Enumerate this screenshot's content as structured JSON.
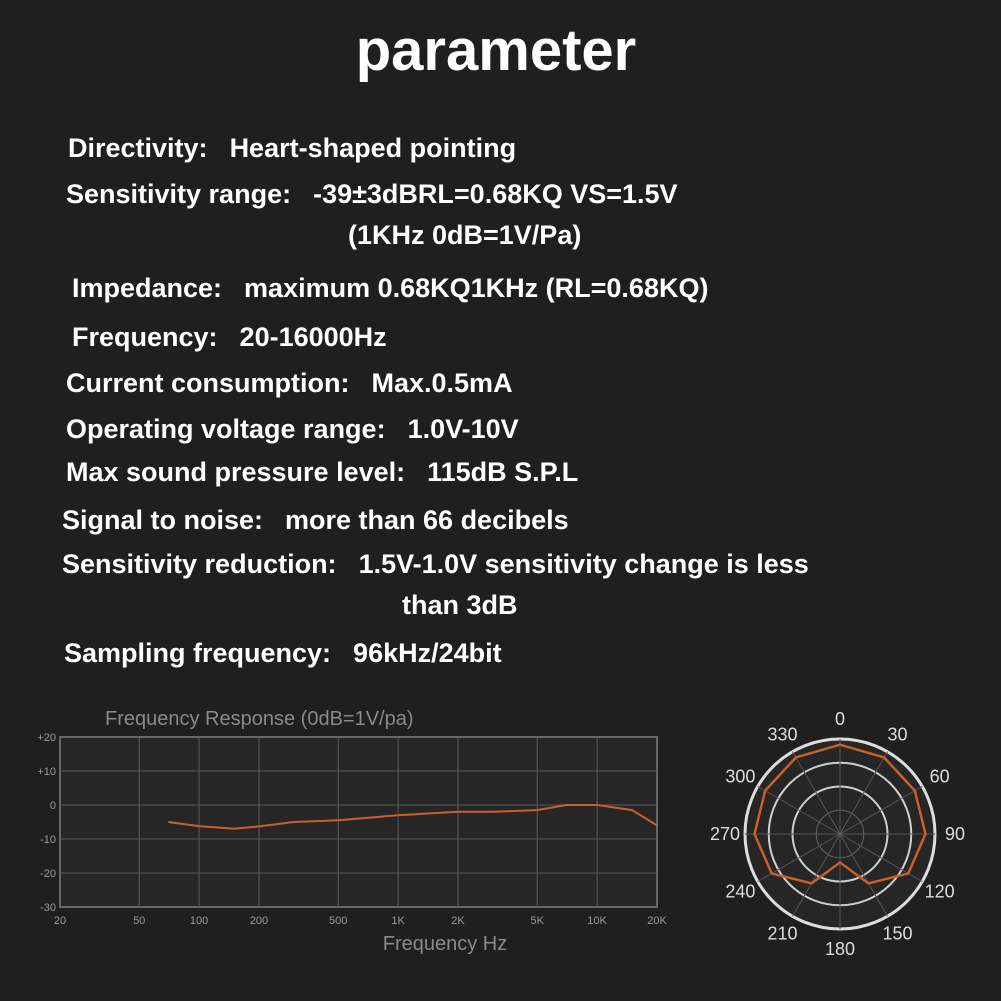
{
  "header": {
    "title": "parameter"
  },
  "specs": [
    {
      "label": "Directivity:",
      "lines": [
        "Heart-shaped pointing"
      ]
    },
    {
      "label": "Sensitivity range:",
      "lines": [
        "-39±3dBRL=0.68KQ VS=1.5V",
        "(1KHz 0dB=1V/Pa)"
      ]
    },
    {
      "label": "Impedance:",
      "lines": [
        "maximum 0.68KQ1KHz (RL=0.68KQ)"
      ]
    },
    {
      "label": "Frequency:",
      "lines": [
        "20-16000Hz"
      ]
    },
    {
      "label": "Current consumption:",
      "lines": [
        "Max.0.5mA"
      ]
    },
    {
      "label": "Operating voltage range:",
      "lines": [
        "1.0V-10V"
      ]
    },
    {
      "label": "Max sound pressure level:",
      "lines": [
        "115dB S.P.L"
      ]
    },
    {
      "label": "Signal to noise:",
      "lines": [
        "more than 66 decibels"
      ]
    },
    {
      "label": "Sensitivity reduction:",
      "lines": [
        "1.5V-1.0V sensitivity change is less",
        "than 3dB"
      ]
    },
    {
      "label": "Sampling frequency:",
      "lines": [
        "96kHz/24bit"
      ]
    }
  ],
  "chart_data": [
    {
      "type": "line",
      "title": "Frequency Response (0dB=1V/pa)",
      "x_label": "Frequency Hz",
      "x_scale": "log",
      "grid": true,
      "xlim": [
        20,
        20000
      ],
      "xticks": [
        20,
        50,
        100,
        200,
        500,
        {
          "value": 1000,
          "label": "1K"
        },
        {
          "value": 2000,
          "label": "2K"
        },
        {
          "value": 5000,
          "label": "5K"
        },
        {
          "value": 10000,
          "label": "10K"
        },
        {
          "value": 20000,
          "label": "20K"
        }
      ],
      "ylim": [
        -30,
        20
      ],
      "yticks": [
        {
          "value": 20,
          "label": "+20"
        },
        {
          "value": 10,
          "label": "+10"
        },
        0,
        -10,
        -20,
        -30
      ],
      "series": [
        {
          "color": "#c8602a",
          "x": [
            70,
            100,
            150,
            200,
            300,
            500,
            1000,
            2000,
            3000,
            5000,
            7000,
            10000,
            15000,
            20000
          ],
          "values": [
            -5,
            -6.2,
            -7,
            -6.3,
            -5,
            -4.5,
            -3,
            -2,
            -2,
            -1.5,
            0,
            0,
            -1.5,
            -6
          ]
        }
      ]
    },
    {
      "type": "polar",
      "grid": true,
      "rlim": [
        0,
        1
      ],
      "thetaticks": [
        0,
        30,
        60,
        90,
        120,
        150,
        180,
        210,
        240,
        270,
        300,
        330
      ],
      "series": [
        {
          "color": "#c8602a",
          "theta": [
            0,
            30,
            60,
            90,
            120,
            150,
            180,
            210,
            240,
            270,
            300,
            330
          ],
          "values": [
            0.94,
            0.93,
            0.91,
            0.9,
            0.83,
            0.6,
            0.3,
            0.6,
            0.83,
            0.9,
            0.91,
            0.93
          ]
        }
      ]
    }
  ]
}
